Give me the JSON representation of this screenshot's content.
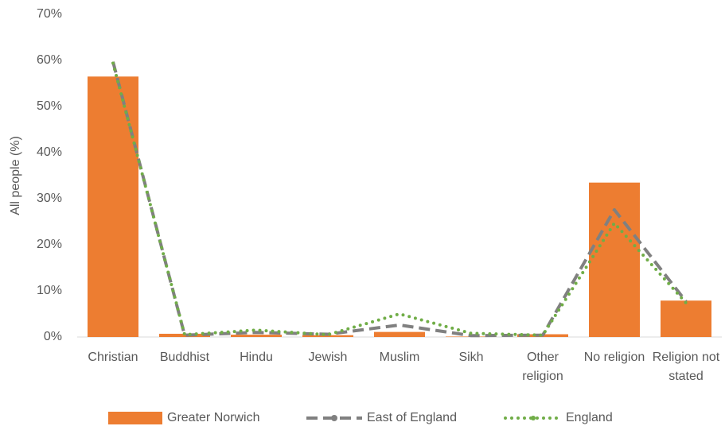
{
  "chart_data": {
    "type": "bar",
    "y_label": "All people (%)",
    "categories": [
      "Christian",
      "Buddhist",
      "Hindu",
      "Jewish",
      "Muslim",
      "Sikh",
      "Other religion",
      "No religion",
      "Religion not stated"
    ],
    "series": [
      {
        "name": "Greater Norwich",
        "type": "bar",
        "color": "#ed7d31",
        "values": [
          56.5,
          0.7,
          0.5,
          0.4,
          1.1,
          0.1,
          0.6,
          33.5,
          7.9
        ]
      },
      {
        "name": "East of England",
        "type": "line",
        "style": "dashed",
        "color": "#808080",
        "values": [
          59.7,
          0.4,
          1.0,
          0.6,
          2.6,
          0.3,
          0.4,
          27.6,
          7.7
        ]
      },
      {
        "name": "England",
        "type": "line",
        "style": "dotted",
        "color": "#70ad47",
        "values": [
          59.4,
          0.5,
          1.5,
          0.5,
          5.0,
          0.8,
          0.4,
          24.7,
          7.4
        ]
      }
    ],
    "ylim": [
      0,
      70
    ],
    "yticks": [
      {
        "value": 0,
        "label": "0%"
      },
      {
        "value": 10,
        "label": "10%"
      },
      {
        "value": 20,
        "label": "20%"
      },
      {
        "value": 30,
        "label": "30%"
      },
      {
        "value": 40,
        "label": "40%"
      },
      {
        "value": 50,
        "label": "50%"
      },
      {
        "value": 60,
        "label": "60%"
      },
      {
        "value": 70,
        "label": "70%"
      }
    ],
    "grid": false,
    "legend": "bottom"
  }
}
